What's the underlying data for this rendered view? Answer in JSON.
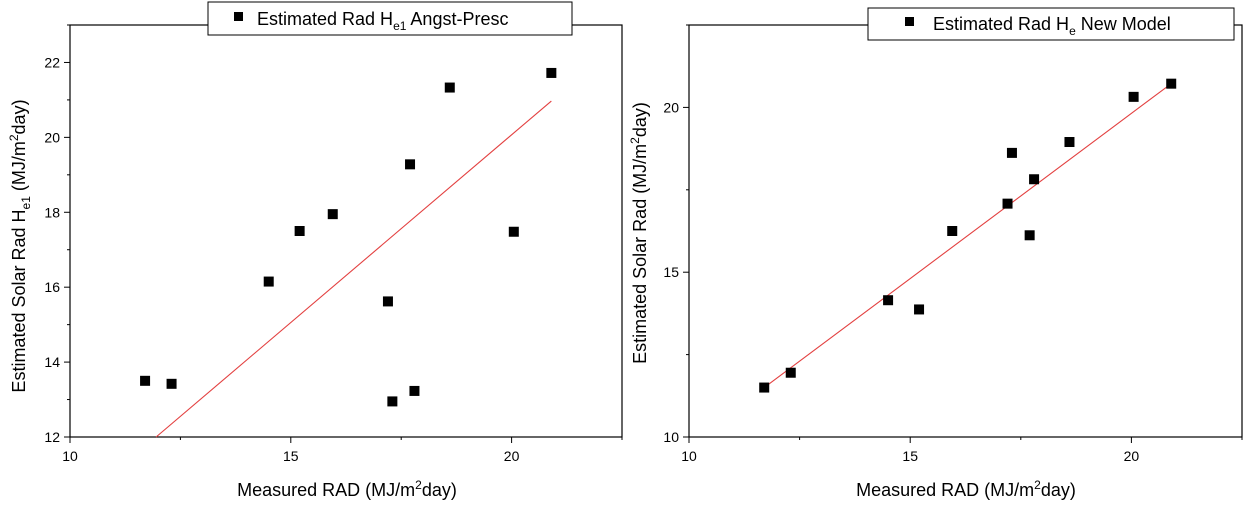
{
  "chart_data": [
    {
      "type": "scatter",
      "title": "",
      "legend": {
        "marker_label": "Estimated Rad H",
        "subscript": "e1",
        "suffix": " Angst-Presc"
      },
      "xlabel": {
        "before": "Measured RAD (MJ/m",
        "sup": "2",
        "after": "day)"
      },
      "ylabel": {
        "before": "Estimated Solar Rad H",
        "sub": "e1",
        "mid": " (MJ/m",
        "sup": "2",
        "after": "day)"
      },
      "xlim": [
        10,
        22.5
      ],
      "ylim": [
        12,
        23
      ],
      "x_ticks": [
        10,
        15,
        20
      ],
      "y_ticks": [
        12,
        14,
        16,
        18,
        20,
        22
      ],
      "marker_color": "#000000",
      "fit_line_color": "#e34040",
      "series": [
        {
          "x": [
            11.7,
            12.3,
            14.5,
            15.2,
            15.95,
            17.2,
            17.3,
            17.7,
            17.8,
            18.6,
            20.05,
            20.9
          ],
          "y": [
            13.5,
            13.42,
            16.15,
            17.5,
            17.95,
            15.62,
            12.95,
            19.28,
            13.23,
            21.33,
            17.48,
            21.72
          ]
        }
      ],
      "fit_line": {
        "x": [
          11.95,
          20.9
        ],
        "y": [
          12.0,
          20.97
        ]
      }
    },
    {
      "type": "scatter",
      "title": "",
      "legend": {
        "marker_label": "Estimated Rad H",
        "subscript": "e",
        "suffix": " New Model"
      },
      "xlabel": {
        "before": "Measured RAD (MJ/m",
        "sup": "2",
        "after": "day)"
      },
      "ylabel": {
        "before": "Estimated Solar Rad",
        "sub": "",
        "mid": " (MJ/m",
        "sup": "2",
        "after": "day)"
      },
      "xlim": [
        10,
        22.5
      ],
      "ylim": [
        10,
        22.5
      ],
      "x_ticks": [
        10,
        15,
        20
      ],
      "y_ticks": [
        10,
        15,
        20
      ],
      "marker_color": "#000000",
      "fit_line_color": "#e34040",
      "series": [
        {
          "x": [
            11.7,
            12.3,
            14.5,
            15.2,
            15.95,
            17.2,
            17.3,
            17.7,
            17.8,
            18.6,
            20.05,
            20.9
          ],
          "y": [
            11.5,
            11.95,
            14.15,
            13.87,
            16.25,
            17.08,
            18.62,
            16.12,
            17.82,
            18.95,
            20.32,
            20.72
          ]
        }
      ],
      "fit_line": {
        "x": [
          11.7,
          20.9
        ],
        "y": [
          11.5,
          20.72
        ]
      }
    }
  ]
}
